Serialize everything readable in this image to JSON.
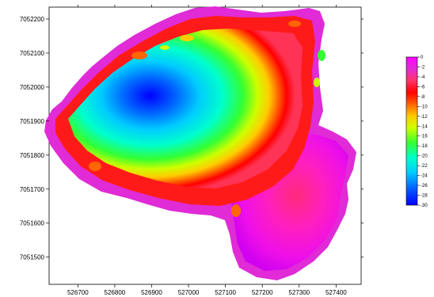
{
  "chart_data": {
    "type": "heatmap",
    "title": "",
    "xlabel": "",
    "ylabel": "",
    "x_ticks": [
      "526700",
      "526800",
      "526900",
      "527000",
      "527100",
      "527200",
      "527300",
      "527400"
    ],
    "y_ticks": [
      "7052200",
      "7052100",
      "7052000",
      "7051900",
      "7051800",
      "7051700",
      "7051600",
      "7051500"
    ],
    "xlim": [
      526622,
      527468
    ],
    "ylim": [
      7051420,
      7052235
    ],
    "colorbar": {
      "labels": [
        "0",
        "-2",
        "-4",
        "-6",
        "-8",
        "-10",
        "-12",
        "-14",
        "-16",
        "-18",
        "-20",
        "-22",
        "-24",
        "-26",
        "-28",
        "-30"
      ],
      "range": [
        -30,
        0
      ]
    },
    "colormap": [
      "#ff00ff",
      "#e02bd6",
      "#ff3355",
      "#ff0000",
      "#ff6600",
      "#ffcc00",
      "#ccff00",
      "#33ff33",
      "#00ffcc",
      "#00ccff",
      "#0066ff",
      "#0000ff"
    ],
    "notes_visible": "lake bathymetry depth map, deepest zone (~-30) near x 526920, y 7051970"
  }
}
